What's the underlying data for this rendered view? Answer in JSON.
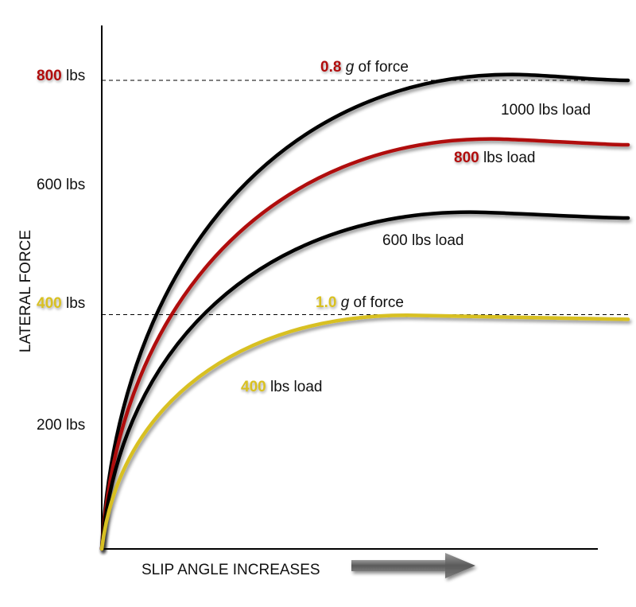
{
  "chart_data": {
    "type": "line",
    "xlabel": "SLIP ANGLE INCREASES",
    "ylabel": "LATERAL FORCE",
    "ylim": [
      0,
      900
    ],
    "y_ticks": [
      {
        "value": 800,
        "num": "800",
        "unit": " lbs",
        "highlight": "#b01010"
      },
      {
        "value": 600,
        "num": "",
        "unit": "600 lbs",
        "highlight": ""
      },
      {
        "value": 400,
        "num": "400",
        "unit": " lbs",
        "highlight": "#d8c020"
      },
      {
        "value": 200,
        "num": "",
        "unit": "200 lbs",
        "highlight": ""
      }
    ],
    "reference_lines": [
      {
        "value": 800,
        "num": "0.8",
        "italic": "g",
        "rest": " of force",
        "color": "#b01010"
      },
      {
        "value": 400,
        "num": "1.0",
        "italic": "g",
        "rest": " of force",
        "color": "#d8c020"
      }
    ],
    "series": [
      {
        "name": "1000 lbs load",
        "num": "",
        "rest": "1000 lbs load",
        "color": "#000000",
        "highlight": "",
        "peak": 810,
        "sustain": 800
      },
      {
        "name": "800 lbs load",
        "num": "800",
        "rest": " lbs load",
        "color": "#b01010",
        "highlight": "#b01010",
        "peak": 700,
        "sustain": 690
      },
      {
        "name": "600 lbs load",
        "num": "",
        "rest": "600 lbs load",
        "color": "#000000",
        "highlight": "",
        "peak": 575,
        "sustain": 565
      },
      {
        "name": "400 lbs load",
        "num": "400",
        "rest": " lbs load",
        "color": "#d8c020",
        "highlight": "#d8c020",
        "peak": 399,
        "sustain": 392
      }
    ],
    "colors": {
      "red": "#b01010",
      "yellow": "#d8c020",
      "black": "#000000",
      "arrow": "#666666"
    }
  }
}
